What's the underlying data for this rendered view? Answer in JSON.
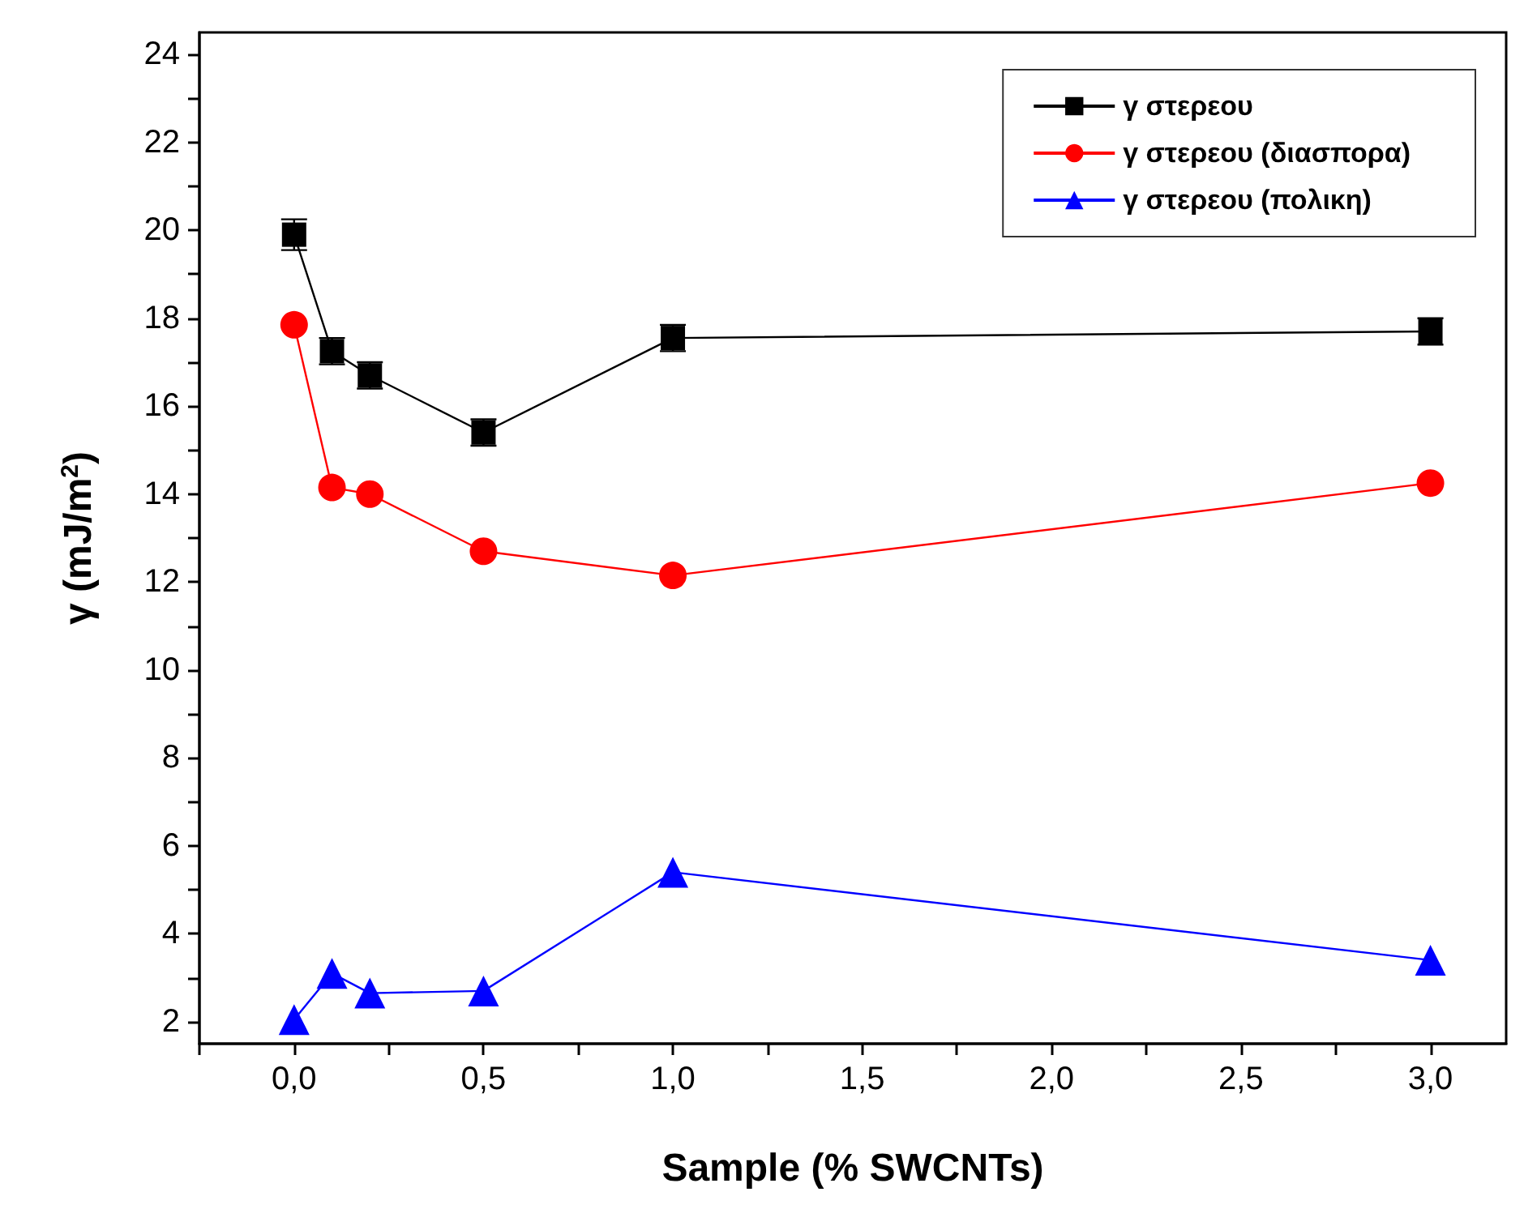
{
  "chart_data": {
    "type": "line",
    "xlabel": "Sample (% SWCNTs)",
    "ylabel": "γ (mJ/m$^{2}$)",
    "x": [
      0,
      0.1,
      0.2,
      0.5,
      1,
      3
    ],
    "series": [
      {
        "name": "γ στερεου",
        "color": "#000000",
        "marker": "square",
        "values": [
          19.9,
          17.25,
          16.7,
          15.4,
          17.55,
          17.7
        ],
        "errors": [
          0.35,
          0.3,
          0.3,
          0.3,
          0.3,
          0.3
        ]
      },
      {
        "name": "γ στερεου (διασπορα)",
        "color": "#ff0000",
        "marker": "circle",
        "values": [
          17.85,
          14.15,
          14.0,
          12.7,
          12.15,
          14.25
        ]
      },
      {
        "name": "γ στερεου (πολικη)",
        "color": "#0000ff",
        "marker": "triangle",
        "values": [
          2.05,
          3.1,
          2.65,
          2.7,
          5.4,
          3.4
        ]
      }
    ],
    "xlim": [
      -0.25,
      3.2
    ],
    "xticks": [
      {
        "value": -0.25,
        "label": null
      },
      {
        "value": 0,
        "label": "0,0"
      },
      {
        "value": 0.25,
        "label": null
      },
      {
        "value": 0.5,
        "label": "0,5"
      },
      {
        "value": 0.75,
        "label": null
      },
      {
        "value": 1,
        "label": "1,0"
      },
      {
        "value": 1.25,
        "label": null
      },
      {
        "value": 1.5,
        "label": "1,5"
      },
      {
        "value": 1.75,
        "label": null
      },
      {
        "value": 2,
        "label": "2,0"
      },
      {
        "value": 2.25,
        "label": null
      },
      {
        "value": 2.5,
        "label": "2,5"
      },
      {
        "value": 2.75,
        "label": null
      },
      {
        "value": 3,
        "label": "3,0"
      }
    ],
    "ylim": [
      1.5,
      24.5
    ],
    "yticks": [
      2,
      {
        "value": 3,
        "label": null
      },
      4,
      {
        "value": 5,
        "label": null
      },
      6,
      {
        "value": 7,
        "label": null
      },
      8,
      {
        "value": 9,
        "label": null
      },
      10,
      {
        "value": 11,
        "label": null
      },
      12,
      {
        "value": 13,
        "label": null
      },
      14,
      {
        "value": 15,
        "label": null
      },
      16,
      {
        "value": 17,
        "label": null
      },
      18,
      {
        "value": 19,
        "label": null
      },
      20,
      {
        "value": 21,
        "label": null
      },
      22,
      {
        "value": 23,
        "label": null
      },
      24
    ],
    "grid": false,
    "legend": "top right",
    "line_style": "solid"
  }
}
